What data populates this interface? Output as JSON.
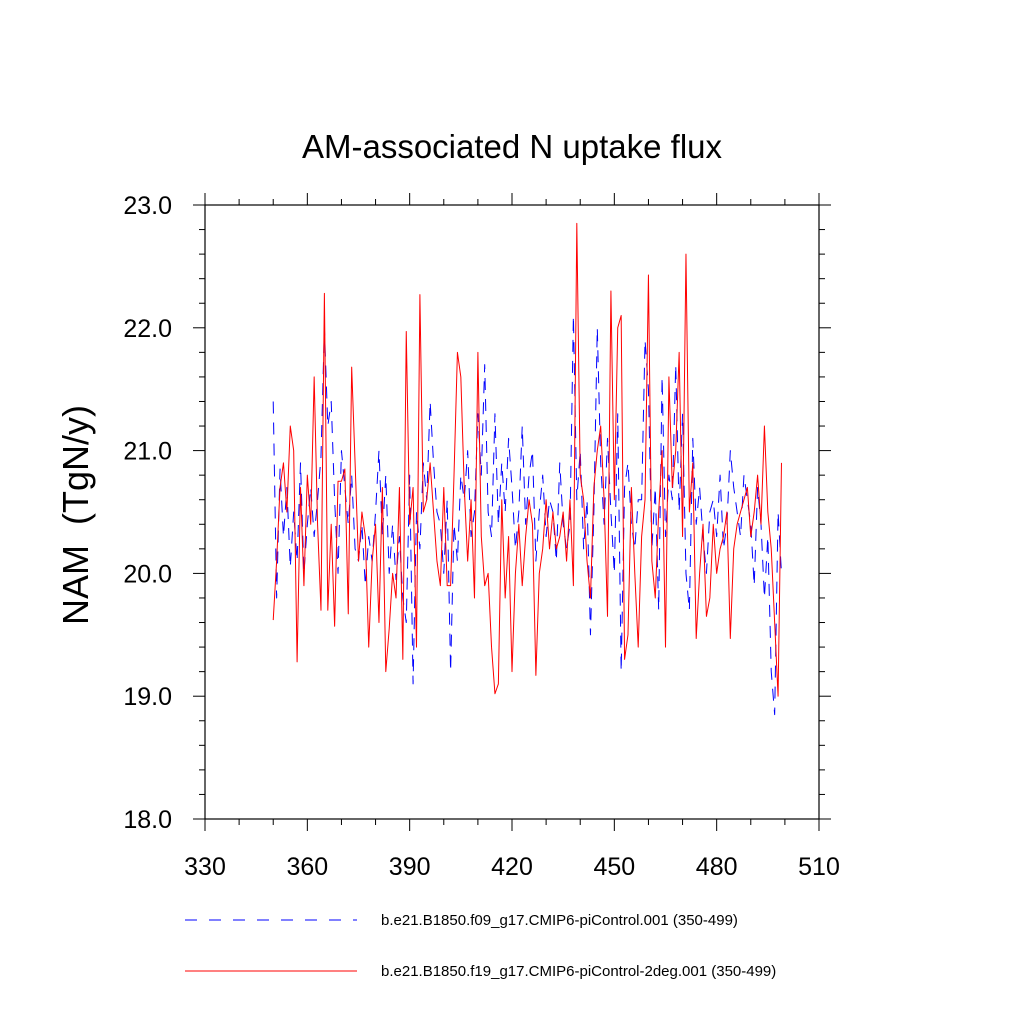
{
  "chart_data": {
    "type": "line",
    "title": "AM-associated N uptake flux",
    "xlabel": "",
    "ylabel": "NAM  (TgN/y)",
    "xlim": [
      330,
      510
    ],
    "ylim": [
      18.0,
      23.0
    ],
    "xticks": [
      "330",
      "360",
      "390",
      "420",
      "450",
      "480",
      "510"
    ],
    "yticks": [
      "18.0",
      "19.0",
      "20.0",
      "21.0",
      "22.0",
      "23.0"
    ],
    "grid": false,
    "legend_position": "bottom",
    "x_start": 350,
    "series": [
      {
        "name": "b.e21.B1850.f09_g17.CMIP6-piControl.001 (350-499)",
        "color": "#0000ff",
        "style": "dashed",
        "values": [
          21.4,
          19.8,
          20.85,
          20.3,
          20.7,
          20.05,
          20.5,
          20.1,
          20.9,
          20.0,
          20.4,
          20.7,
          20.3,
          20.6,
          20.95,
          22.0,
          21.2,
          21.4,
          20.6,
          20.0,
          21.0,
          20.7,
          20.4,
          20.8,
          20.2,
          20.1,
          20.4,
          19.9,
          20.3,
          20.1,
          20.5,
          21.0,
          20.3,
          20.8,
          20.0,
          20.4,
          19.95,
          20.3,
          19.8,
          19.6,
          20.8,
          19.1,
          20.5,
          20.2,
          20.9,
          20.6,
          21.4,
          20.9,
          20.5,
          20.4,
          20.0,
          20.6,
          19.2,
          20.4,
          20.1,
          20.8,
          20.6,
          21.0,
          20.3,
          20.5,
          21.3,
          20.8,
          21.7,
          20.5,
          20.3,
          21.3,
          20.4,
          20.9,
          20.5,
          21.1,
          20.7,
          20.2,
          20.5,
          21.2,
          20.4,
          20.8,
          21.0,
          20.1,
          20.5,
          20.8,
          20.3,
          20.6,
          20.5,
          20.1,
          20.9,
          20.4,
          20.2,
          20.4,
          22.1,
          20.6,
          21.0,
          20.2,
          20.6,
          19.5,
          20.5,
          22.0,
          20.9,
          20.4,
          21.1,
          20.5,
          20.0,
          21.3,
          19.2,
          20.7,
          20.9,
          20.4,
          20.2,
          20.6,
          20.6,
          21.9,
          21.5,
          20.2,
          20.7,
          19.7,
          21.6,
          20.3,
          20.8,
          20.6,
          21.7,
          20.5,
          21.3,
          20.0,
          19.7,
          21.1,
          20.4,
          20.7,
          20.3,
          20.0,
          20.5,
          20.6,
          20.3,
          20.8,
          20.2,
          20.4,
          21.0,
          20.7,
          20.5,
          20.3,
          20.8,
          20.6,
          20.4,
          19.9,
          20.7,
          20.4,
          19.8,
          20.3,
          19.2,
          18.85,
          20.5,
          20.0
        ]
      },
      {
        "name": "b.e21.B1850.f19_g17.CMIP6-piControl-2deg.001 (350-499)",
        "color": "#ff0000",
        "style": "solid",
        "values": [
          19.62,
          20.1,
          20.7,
          20.9,
          20.5,
          21.2,
          21.0,
          19.28,
          20.7,
          19.9,
          20.8,
          20.4,
          21.6,
          20.4,
          19.7,
          22.28,
          19.7,
          20.4,
          19.57,
          20.75,
          20.75,
          20.85,
          19.67,
          21.68,
          20.9,
          20.1,
          20.5,
          20.3,
          19.4,
          20.1,
          20.4,
          19.6,
          20.7,
          19.2,
          19.55,
          20.0,
          19.8,
          20.7,
          19.3,
          21.97,
          20.4,
          20.7,
          19.4,
          22.27,
          20.5,
          20.6,
          20.9,
          20.5,
          20.1,
          19.9,
          20.7,
          19.9,
          19.9,
          20.8,
          21.8,
          21.6,
          20.7,
          20.1,
          20.6,
          19.8,
          21.8,
          20.3,
          19.9,
          20.0,
          19.4,
          19.02,
          19.1,
          20.6,
          19.8,
          20.3,
          19.2,
          20.0,
          20.4,
          19.9,
          20.3,
          20.6,
          20.4,
          19.17,
          20.0,
          20.2,
          20.6,
          20.2,
          20.5,
          20.2,
          20.3,
          20.5,
          20.1,
          20.6,
          19.9,
          22.85,
          20.8,
          20.6,
          20.1,
          19.8,
          20.7,
          21.0,
          21.2,
          20.6,
          19.65,
          22.3,
          20.6,
          22.0,
          22.1,
          19.3,
          19.5,
          20.7,
          20.0,
          19.4,
          20.3,
          20.6,
          22.43,
          20.1,
          19.8,
          20.5,
          21.0,
          19.4,
          21.6,
          20.7,
          21.0,
          21.8,
          20.3,
          22.6,
          20.5,
          20.9,
          19.47,
          20.0,
          20.4,
          19.65,
          19.8,
          20.4,
          20.0,
          20.2,
          20.3,
          20.5,
          19.47,
          20.2,
          20.4,
          20.5,
          20.6,
          20.7,
          20.3,
          20.5,
          20.8,
          20.4,
          21.2,
          20.5,
          20.2,
          19.6,
          19.0,
          20.9
        ]
      }
    ]
  }
}
